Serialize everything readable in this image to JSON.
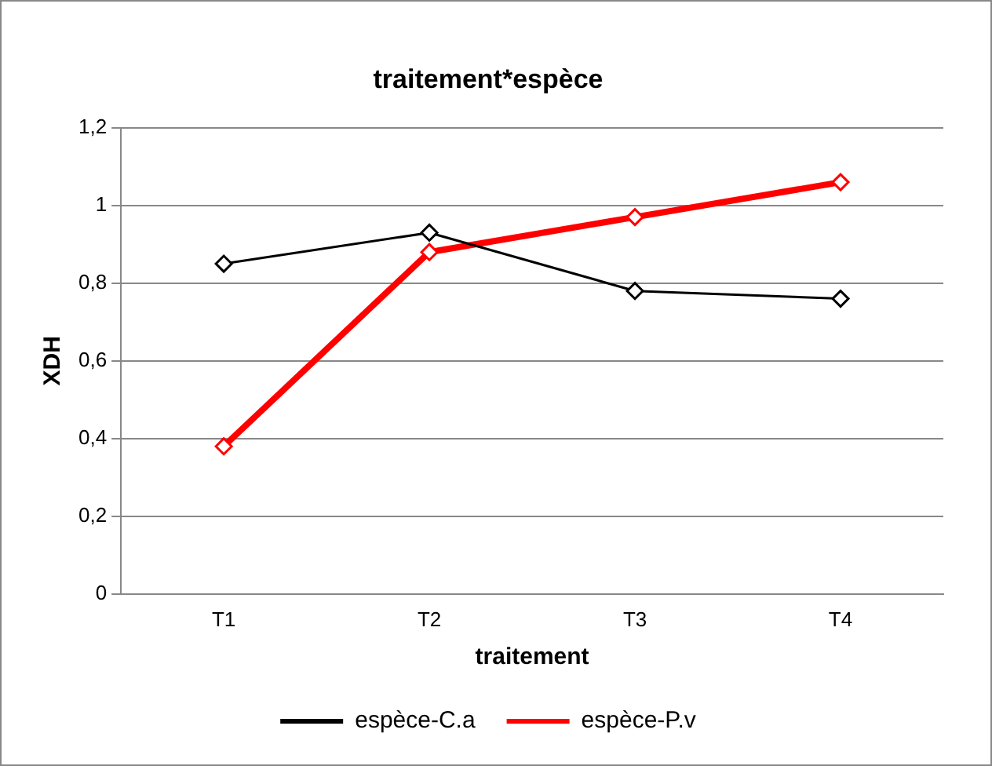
{
  "chart_data": {
    "type": "line",
    "title": "traitement*espèce",
    "xlabel": "traitement",
    "ylabel": "XDH",
    "categories": [
      "T1",
      "T2",
      "T3",
      "T4"
    ],
    "series": [
      {
        "name": "espèce-C.a",
        "color": "#000000",
        "values": [
          0.85,
          0.93,
          0.78,
          0.76
        ]
      },
      {
        "name": "espèce-P.v",
        "color": "#ff0000",
        "values": [
          0.38,
          0.88,
          0.97,
          1.06
        ]
      }
    ],
    "ylim": [
      0,
      1.2
    ],
    "yticks": [
      0,
      {
        "value": 0.2,
        "label": "0,2"
      },
      {
        "value": 0.4,
        "label": "0,4"
      },
      {
        "value": 0.6,
        "label": "0,6"
      },
      {
        "value": 0.8,
        "label": "0,8"
      },
      1,
      {
        "value": 1.2,
        "label": "1,2"
      }
    ],
    "grid": "y",
    "legend": "bottom",
    "marker": "diamond",
    "line_style": "solid"
  }
}
